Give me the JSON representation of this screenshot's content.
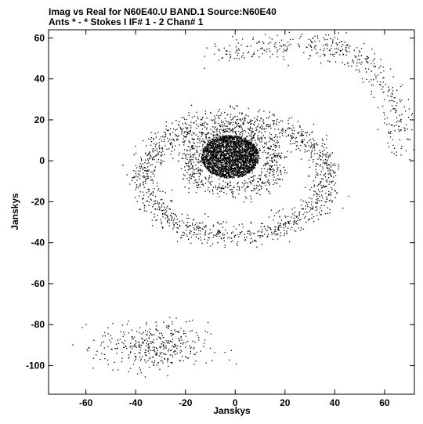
{
  "chart_data": {
    "type": "scatter",
    "title_line1": "Imag vs Real for N60E40.U BAND.1   Source:N60E40",
    "title_line2": "Ants * - *     Stokes I   IF# 1 - 2  Chan# 1",
    "xlabel": "Janskys",
    "ylabel": "Janskys",
    "xlim": [
      -75,
      72
    ],
    "ylim": [
      -114,
      64
    ],
    "xticks": [
      -60,
      -40,
      -20,
      0,
      20,
      40,
      60
    ],
    "yticks": [
      -100,
      -80,
      -60,
      -40,
      -20,
      0,
      20,
      40,
      60
    ],
    "grid": false,
    "point_color": "#000000",
    "components": [
      {
        "kind": "disk",
        "cx": -2,
        "cy": 2,
        "r": 11,
        "n": 2600
      },
      {
        "kind": "ring",
        "cx": -1,
        "cy": 0,
        "rx": 17,
        "ry": 14,
        "w": 2.8,
        "n": 750
      },
      {
        "kind": "ring",
        "cx": 0,
        "cy": -8,
        "rx": 37,
        "ry": 28,
        "w": 3.0,
        "n": 1300
      },
      {
        "kind": "cluster",
        "cx": -33,
        "cy": -91,
        "sx": 11,
        "sy": 6,
        "n": 380
      },
      {
        "kind": "arc",
        "points": [
          [
            -8,
            52
          ],
          [
            10,
            55
          ],
          [
            30,
            57
          ],
          [
            42,
            56
          ],
          [
            52,
            48
          ],
          [
            60,
            35
          ],
          [
            66,
            20
          ],
          [
            67,
            5
          ]
        ],
        "w": 3.5,
        "n": 420
      }
    ]
  }
}
